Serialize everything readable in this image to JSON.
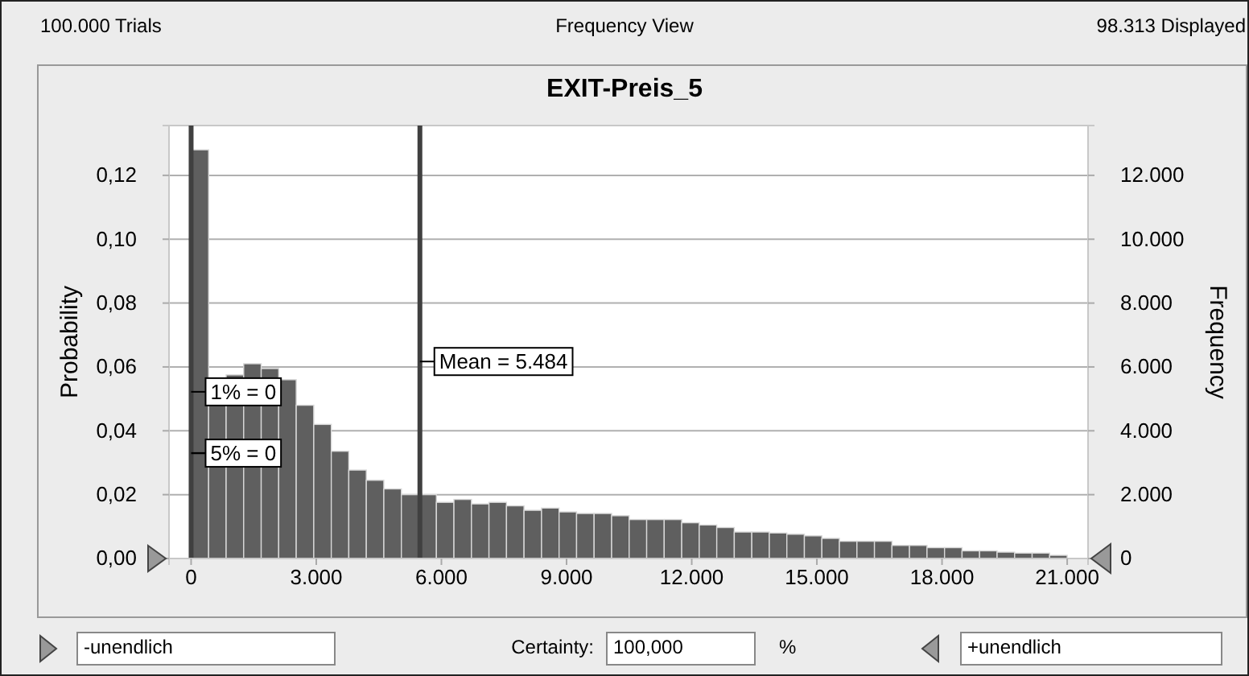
{
  "chart_data": {
    "type": "histogram",
    "title": "EXIT-Preis_5",
    "ylabel": "Probability",
    "y2label": "Frequency",
    "bins": [
      0,
      420,
      840,
      1260,
      1680,
      2100,
      2520,
      2940,
      3360,
      3780,
      4200,
      4620,
      5040,
      5460,
      5880,
      6300,
      6720,
      7140,
      7560,
      7980,
      8400,
      8820,
      9240,
      9660,
      10080,
      10500,
      10920,
      11340,
      11760,
      12180,
      12600,
      13020,
      13440,
      13860,
      14280,
      14700,
      15120,
      15540,
      15960,
      16380,
      16800,
      17220,
      17640,
      18060,
      18480,
      18900,
      19320,
      19740,
      20160,
      20580,
      21000
    ],
    "values": [
      0.128,
      0.049,
      0.0575,
      0.061,
      0.0595,
      0.056,
      0.048,
      0.042,
      0.0336,
      0.0277,
      0.0245,
      0.0218,
      0.02,
      0.02,
      0.0176,
      0.0185,
      0.0171,
      0.0176,
      0.0165,
      0.0151,
      0.0158,
      0.0146,
      0.0141,
      0.0141,
      0.0134,
      0.0122,
      0.0122,
      0.0122,
      0.0112,
      0.0105,
      0.0097,
      0.0083,
      0.0083,
      0.008,
      0.0076,
      0.0071,
      0.0063,
      0.0054,
      0.0054,
      0.0054,
      0.0041,
      0.0041,
      0.0034,
      0.0034,
      0.0024,
      0.0024,
      0.002,
      0.0017,
      0.0017,
      0.001
    ],
    "color": "#5f5f5f",
    "xlim": [
      -530,
      21500
    ],
    "xticks": [
      {
        "value": 0,
        "label": "0"
      },
      {
        "value": 3000,
        "label": "3.000"
      },
      {
        "value": 6000,
        "label": "6.000"
      },
      {
        "value": 9000,
        "label": "9.000"
      },
      {
        "value": 12000,
        "label": "12.000"
      },
      {
        "value": 15000,
        "label": "15.000"
      },
      {
        "value": 18000,
        "label": "18.000"
      },
      {
        "value": 21000,
        "label": "21.000"
      }
    ],
    "ylim": [
      0,
      0.1356
    ],
    "yticks": [
      {
        "value": 0,
        "label": "0,00"
      },
      {
        "value": 0.02,
        "label": "0,02"
      },
      {
        "value": 0.04,
        "label": "0,04"
      },
      {
        "value": 0.06,
        "label": "0,06"
      },
      {
        "value": 0.08,
        "label": "0,08"
      },
      {
        "value": 0.1,
        "label": "0,10"
      },
      {
        "value": 0.12,
        "label": "0,12"
      }
    ],
    "y2lim": [
      0,
      13560
    ],
    "y2ticks": [
      0,
      {
        "value": 2000,
        "label": "2.000"
      },
      {
        "value": 4000,
        "label": "4.000"
      },
      {
        "value": 6000,
        "label": "6.000"
      },
      {
        "value": 8000,
        "label": "8.000"
      },
      {
        "value": 10000,
        "label": "10.000"
      },
      {
        "value": 12000,
        "label": "12.000"
      }
    ],
    "grid": "y",
    "ref_lines": [
      {
        "axis": "x",
        "value": 0,
        "label": "1% = 0",
        "color": "#404040"
      },
      {
        "axis": "x",
        "value": 5484,
        "label": "Mean = 5.484",
        "color": "#404040"
      }
    ],
    "annotations": [
      "100.000 Trials",
      "Frequency View",
      "98.313 Displayed",
      "-unendlich",
      "Certainty:",
      "100,000",
      "%",
      "+unendlich",
      {
        "text": "5% = 0",
        "y": 0.033
      }
    ]
  }
}
